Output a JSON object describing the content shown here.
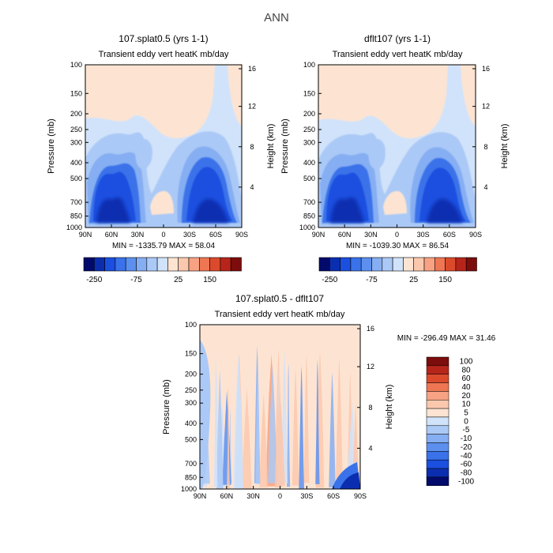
{
  "main_title": "ANN",
  "panels": [
    {
      "title": "107.splat0.5 (yrs 1-1)",
      "subtitle": "Transient eddy vert heatK mb/day",
      "ylabel": "Pressure (mb)",
      "ylabel2": "Height (km)",
      "stats": "MIN = -1335.79   MAX =  58.04",
      "colorbar_ticks": [
        "-250",
        "-75",
        "25",
        "150"
      ]
    },
    {
      "title": "dflt107 (yrs 1-1)",
      "subtitle": "Transient eddy vert heatK mb/day",
      "ylabel": "Pressure (mb)",
      "ylabel2": "Height (km)",
      "stats": "MIN = -1039.30   MAX =  86.54",
      "colorbar_ticks": [
        "-250",
        "-75",
        "25",
        "150"
      ]
    },
    {
      "title": "107.splat0.5 - dflt107",
      "subtitle": "Transient eddy vert heatK mb/day",
      "ylabel": "Pressure (mb)",
      "ylabel2": "Height (km)",
      "stats": "MIN = -296.49   MAX =  31.46",
      "colorbar_ticks": [
        "100",
        "80",
        "60",
        "40",
        "20",
        "10",
        "5",
        "0",
        "-5",
        "-10",
        "-20",
        "-40",
        "-60",
        "-80",
        "-100"
      ]
    }
  ],
  "chart_data": [
    {
      "type": "heatmap",
      "title": "107.splat0.5 (yrs 1-1)",
      "subtitle": "Transient eddy vert heatK mb/day",
      "xlabel": "",
      "ylabel": "Pressure (mb)",
      "y2label": "Height (km)",
      "x_ticks": [
        "90N",
        "60N",
        "30N",
        "0",
        "30S",
        "60S",
        "90S"
      ],
      "y_ticks": [
        "100",
        "150",
        "200",
        "250",
        "300",
        "400",
        "500",
        "700",
        "850",
        "1000"
      ],
      "y2_ticks": [
        "16",
        "12",
        "8",
        "4"
      ],
      "min": -1335.79,
      "max": 58.04,
      "colorbar_ticks": [
        "-250",
        "-75",
        "25",
        "150"
      ]
    },
    {
      "type": "heatmap",
      "title": "dflt107 (yrs 1-1)",
      "subtitle": "Transient eddy vert heatK mb/day",
      "xlabel": "",
      "ylabel": "Pressure (mb)",
      "y2label": "Height (km)",
      "x_ticks": [
        "90N",
        "60N",
        "30N",
        "0",
        "30S",
        "60S",
        "90S"
      ],
      "y_ticks": [
        "100",
        "150",
        "200",
        "250",
        "300",
        "400",
        "500",
        "700",
        "850",
        "1000"
      ],
      "y2_ticks": [
        "16",
        "12",
        "8",
        "4"
      ],
      "min": -1039.3,
      "max": 86.54,
      "colorbar_ticks": [
        "-250",
        "-75",
        "25",
        "150"
      ]
    },
    {
      "type": "heatmap",
      "title": "107.splat0.5 - dflt107",
      "subtitle": "Transient eddy vert heatK mb/day",
      "xlabel": "",
      "ylabel": "Pressure (mb)",
      "y2label": "Height (km)",
      "x_ticks": [
        "90N",
        "60N",
        "30N",
        "0",
        "30S",
        "60S",
        "90S"
      ],
      "y_ticks": [
        "100",
        "150",
        "200",
        "250",
        "300",
        "400",
        "500",
        "700",
        "850",
        "1000"
      ],
      "y2_ticks": [
        "16",
        "12",
        "8",
        "4"
      ],
      "min": -296.49,
      "max": 31.46,
      "colorbar_ticks": [
        "100",
        "80",
        "60",
        "40",
        "20",
        "10",
        "5",
        "0",
        "-5",
        "-10",
        "-20",
        "-40",
        "-60",
        "-80",
        "-100"
      ]
    }
  ],
  "colors": {
    "deep_blue": "#0a1e8c",
    "blue": "#1f50e6",
    "mid_blue": "#4f86ee",
    "light_blue": "#a9ccf6",
    "pale_blue": "#d7e9fb",
    "pale_peach": "#fde4d2",
    "peach": "#f8b79a",
    "orange": "#f07a55",
    "red": "#d43a22",
    "dark_red": "#8b0c0c"
  },
  "palette_top": [
    "#020b6b",
    "#0b2eb0",
    "#1b4fe0",
    "#3a72ea",
    "#5d90ee",
    "#86aef2",
    "#abc9f6",
    "#d1e3fa",
    "#fde4d2",
    "#fbc8ae",
    "#f7a283",
    "#ef7653",
    "#dc4a2c",
    "#b7251a",
    "#7d0c0c"
  ],
  "palette_diff": [
    "#7d0c0c",
    "#b7251a",
    "#dc4a2c",
    "#ef7653",
    "#f7a283",
    "#fbc8ae",
    "#fde4d2",
    "#d1e3fa",
    "#abc9f6",
    "#86aef2",
    "#5d90ee",
    "#3a72ea",
    "#1b4fe0",
    "#0b2eb0",
    "#020b6b"
  ]
}
